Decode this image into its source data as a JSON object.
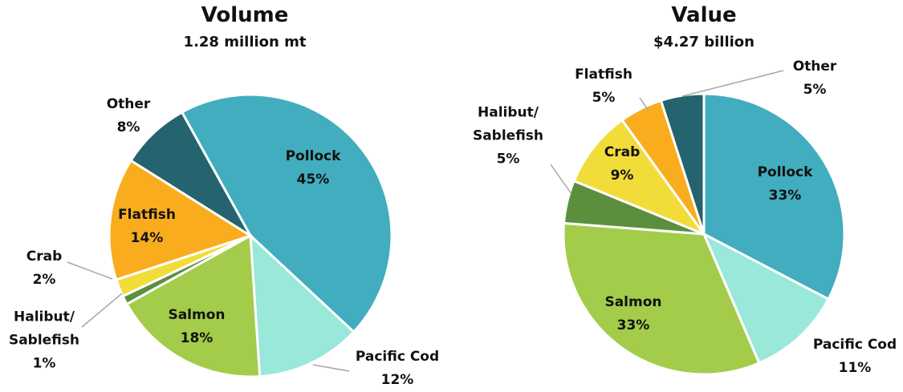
{
  "chart_data": [
    {
      "type": "pie",
      "title": "Volume",
      "subtitle": "1.28 million mt",
      "categories": [
        "Pollock",
        "Pacific Cod",
        "Salmon",
        "Halibut/ Sablefish",
        "Crab",
        "Flatfish",
        "Other"
      ],
      "values": [
        45,
        12,
        18,
        1,
        2,
        14,
        8
      ],
      "value_labels": [
        "45%",
        "12%",
        "18%",
        "1%",
        "2%",
        "14%",
        "8%"
      ],
      "colors": [
        "#41adbe",
        "#9ae8d9",
        "#a3cc4a",
        "#5b8f3d",
        "#f2dc3a",
        "#f9ad1e",
        "#25636e"
      ]
    },
    {
      "type": "pie",
      "title": "Value",
      "subtitle": "$4.27 billion",
      "categories": [
        "Pollock",
        "Pacific Cod",
        "Salmon",
        "Halibut/ Sablefish",
        "Crab",
        "Flatfish",
        "Other"
      ],
      "values": [
        33,
        11,
        33,
        5,
        9,
        5,
        5
      ],
      "value_labels": [
        "33%",
        "11%",
        "33%",
        "5%",
        "9%",
        "5%",
        "5%"
      ],
      "colors": [
        "#41adbe",
        "#9ae8d9",
        "#a3cc4a",
        "#5b8f3d",
        "#f2dc3a",
        "#f9ad1e",
        "#25636e"
      ]
    }
  ]
}
